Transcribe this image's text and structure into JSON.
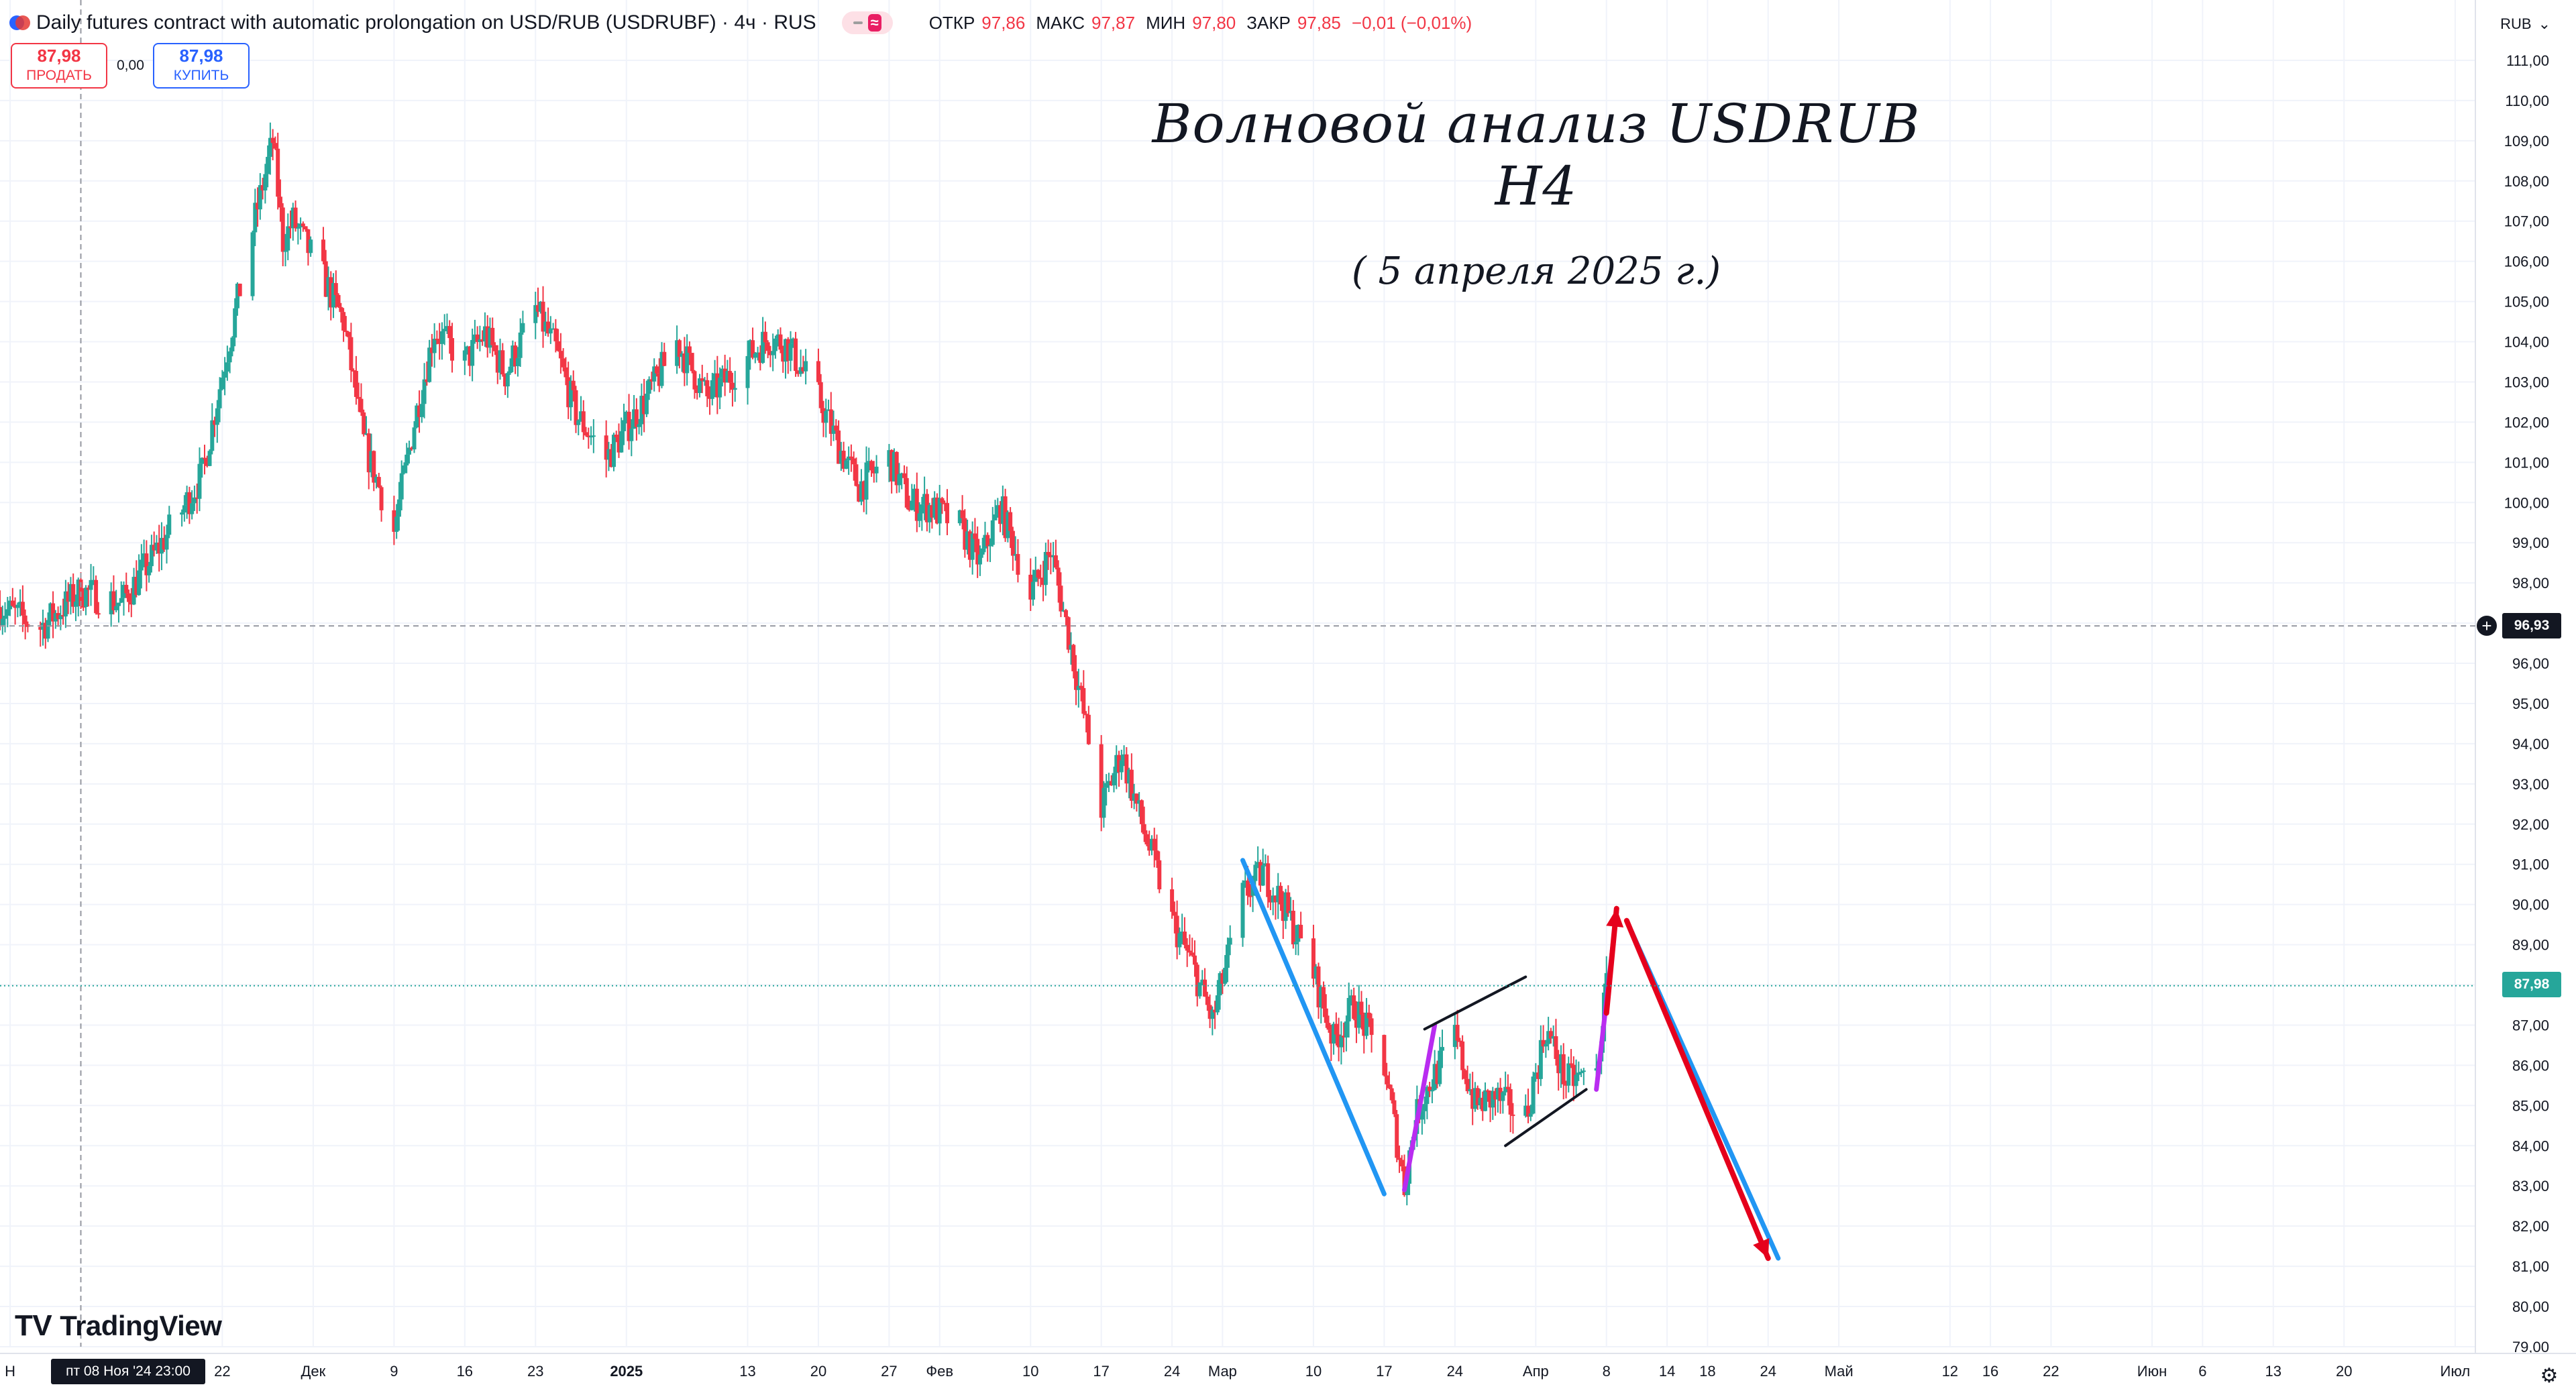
{
  "header": {
    "title": "Daily futures contract with automatic prolongation on USD/RUB (USDRUBF) · 4ч · RUS",
    "ohlc": [
      {
        "label": "ОТКР",
        "value": "97,86"
      },
      {
        "label": "МАКС",
        "value": "97,87"
      },
      {
        "label": "МИН",
        "value": "97,80"
      },
      {
        "label": "ЗАКР",
        "value": "97,85"
      }
    ],
    "change": "−0,01 (−0,01%)"
  },
  "trade": {
    "sell_price": "87,98",
    "sell_label": "ПРОДАТЬ",
    "spread": "0,00",
    "buy_price": "87,98",
    "buy_label": "КУПИТЬ"
  },
  "currency": "RUB",
  "crosshair_price": "96,93",
  "last_price": "87,98",
  "crosshair_time": "пт 08 Ноя '24   23:00",
  "watermark": "TradingView",
  "annotations": {
    "title": "Волновой анализ USDRUB H4",
    "date": "( 5 апреля 2025 г.)"
  },
  "colors": {
    "up": "#26a69a",
    "down": "#f23645",
    "blue_line": "#2196f3",
    "purple_line": "#b92cf0",
    "red_arrow": "#e5001c",
    "channel": "#131722"
  },
  "chart_data": {
    "type": "candlestick",
    "title": "",
    "xlabel": "",
    "ylabel": "",
    "ylim": [
      79,
      111.5
    ],
    "yticks": [
      "79,00",
      "80,00",
      "81,00",
      "82,00",
      "83,00",
      "84,00",
      "85,00",
      "86,00",
      "87,00",
      "88,00",
      "89,00",
      "90,00",
      "91,00",
      "92,00",
      "93,00",
      "94,00",
      "95,00",
      "96,00",
      "97,00",
      "98,00",
      "99,00",
      "100,00",
      "101,00",
      "102,00",
      "103,00",
      "104,00",
      "105,00",
      "106,00",
      "107,00",
      "108,00",
      "109,00",
      "110,00",
      "111,00"
    ],
    "xticks": [
      {
        "label": "Н",
        "date": "2024-11-01"
      },
      {
        "label": "22",
        "date": "2024-11-22"
      },
      {
        "label": "Дек",
        "date": "2024-12-01"
      },
      {
        "label": "9",
        "date": "2024-12-09"
      },
      {
        "label": "16",
        "date": "2024-12-16"
      },
      {
        "label": "23",
        "date": "2024-12-23"
      },
      {
        "label": "2025",
        "date": "2025-01-01",
        "bold": true
      },
      {
        "label": "13",
        "date": "2025-01-13"
      },
      {
        "label": "20",
        "date": "2025-01-20"
      },
      {
        "label": "27",
        "date": "2025-01-27"
      },
      {
        "label": "Фев",
        "date": "2025-02-01"
      },
      {
        "label": "10",
        "date": "2025-02-10"
      },
      {
        "label": "17",
        "date": "2025-02-17"
      },
      {
        "label": "24",
        "date": "2025-02-24"
      },
      {
        "label": "Мар",
        "date": "2025-03-01"
      },
      {
        "label": "10",
        "date": "2025-03-10"
      },
      {
        "label": "17",
        "date": "2025-03-17"
      },
      {
        "label": "24",
        "date": "2025-03-24"
      },
      {
        "label": "Апр",
        "date": "2025-04-01"
      },
      {
        "label": "8",
        "date": "2025-04-08"
      },
      {
        "label": "14",
        "date": "2025-04-14"
      },
      {
        "label": "18",
        "date": "2025-04-18"
      },
      {
        "label": "24",
        "date": "2025-04-24"
      },
      {
        "label": "Май",
        "date": "2025-05-01"
      },
      {
        "label": "12",
        "date": "2025-05-12"
      },
      {
        "label": "16",
        "date": "2025-05-16"
      },
      {
        "label": "22",
        "date": "2025-05-22"
      },
      {
        "label": "Июн",
        "date": "2025-06-01"
      },
      {
        "label": "6",
        "date": "2025-06-06"
      },
      {
        "label": "13",
        "date": "2025-06-13"
      },
      {
        "label": "20",
        "date": "2025-06-20"
      },
      {
        "label": "Июл",
        "date": "2025-07-01"
      }
    ],
    "x_range": [
      "2024-10-31",
      "2025-07-03"
    ],
    "price_path": [
      [
        "2024-10-31",
        97.4
      ],
      [
        "2024-11-04",
        96.9
      ],
      [
        "2024-11-08",
        97.8
      ],
      [
        "2024-11-12",
        97.5
      ],
      [
        "2024-11-15",
        98.6
      ],
      [
        "2024-11-18",
        99.8
      ],
      [
        "2024-11-20",
        100.7
      ],
      [
        "2024-11-22",
        103.2
      ],
      [
        "2024-11-25",
        106.8
      ],
      [
        "2024-11-27",
        109.0
      ],
      [
        "2024-11-28",
        106.5
      ],
      [
        "2024-11-29",
        107.0
      ],
      [
        "2024-12-02",
        105.6
      ],
      [
        "2024-12-04",
        104.5
      ],
      [
        "2024-12-06",
        101.5
      ],
      [
        "2024-12-09",
        99.3
      ],
      [
        "2024-12-11",
        102.0
      ],
      [
        "2024-12-13",
        104.3
      ],
      [
        "2024-12-16",
        103.5
      ],
      [
        "2024-12-18",
        104.2
      ],
      [
        "2024-12-20",
        103.2
      ],
      [
        "2024-12-23",
        104.8
      ],
      [
        "2024-12-25",
        103.8
      ],
      [
        "2024-12-27",
        102.2
      ],
      [
        "2024-12-30",
        101.1
      ],
      [
        "2025-01-03",
        102.6
      ],
      [
        "2025-01-06",
        104.0
      ],
      [
        "2025-01-09",
        102.6
      ],
      [
        "2025-01-13",
        103.6
      ],
      [
        "2025-01-15",
        104.1
      ],
      [
        "2025-01-17",
        103.9
      ],
      [
        "2025-01-20",
        102.6
      ],
      [
        "2025-01-22",
        101.4
      ],
      [
        "2025-01-24",
        100.4
      ],
      [
        "2025-01-27",
        101.1
      ],
      [
        "2025-01-29",
        100.0
      ],
      [
        "2025-01-31",
        99.9
      ],
      [
        "2025-02-03",
        99.4
      ],
      [
        "2025-02-05",
        98.5
      ],
      [
        "2025-02-07",
        99.9
      ],
      [
        "2025-02-10",
        97.7
      ],
      [
        "2025-02-12",
        98.8
      ],
      [
        "2025-02-14",
        96.4
      ],
      [
        "2025-02-17",
        92.4
      ],
      [
        "2025-02-19",
        93.8
      ],
      [
        "2025-02-21",
        92.0
      ],
      [
        "2025-02-24",
        89.6
      ],
      [
        "2025-02-26",
        88.5
      ],
      [
        "2025-02-28",
        87.1
      ],
      [
        "2025-03-03",
        90.2
      ],
      [
        "2025-03-05",
        90.8
      ],
      [
        "2025-03-07",
        90.0
      ],
      [
        "2025-03-10",
        88.3
      ],
      [
        "2025-03-12",
        86.6
      ],
      [
        "2025-03-14",
        87.5
      ],
      [
        "2025-03-17",
        86.0
      ],
      [
        "2025-03-19",
        83.0
      ],
      [
        "2025-03-20",
        84.6
      ],
      [
        "2025-03-21",
        85.3
      ],
      [
        "2025-03-24",
        86.7
      ],
      [
        "2025-03-26",
        85.0
      ],
      [
        "2025-03-28",
        85.2
      ],
      [
        "2025-03-31",
        84.7
      ],
      [
        "2025-04-02",
        86.9
      ],
      [
        "2025-04-04",
        85.6
      ],
      [
        "2025-04-07",
        85.8
      ],
      [
        "2025-04-08",
        87.98
      ]
    ],
    "drawings": {
      "blue_lines": [
        {
          "from": [
            "2025-03-03",
            91.1
          ],
          "to": [
            "2025-03-17",
            82.8
          ]
        },
        {
          "from": [
            "2025-04-10",
            89.6
          ],
          "to": [
            "2025-04-25",
            81.2
          ]
        }
      ],
      "purple_lines": [
        {
          "from": [
            "2025-03-19",
            82.9
          ],
          "to": [
            "2025-03-22",
            87.0
          ]
        },
        {
          "from": [
            "2025-04-07",
            85.4
          ],
          "to": [
            "2025-04-09",
            89.8
          ]
        }
      ],
      "red_arrows": [
        {
          "from": [
            "2025-04-08",
            87.3
          ],
          "to": [
            "2025-04-09",
            89.9
          ]
        },
        {
          "from": [
            "2025-04-10",
            89.6
          ],
          "to": [
            "2025-04-24",
            81.2
          ]
        }
      ],
      "channel_lines": [
        {
          "from": [
            "2025-03-21",
            86.9
          ],
          "to": [
            "2025-03-31",
            88.2
          ]
        },
        {
          "from": [
            "2025-03-29",
            84.0
          ],
          "to": [
            "2025-04-06",
            85.4
          ]
        }
      ]
    }
  }
}
